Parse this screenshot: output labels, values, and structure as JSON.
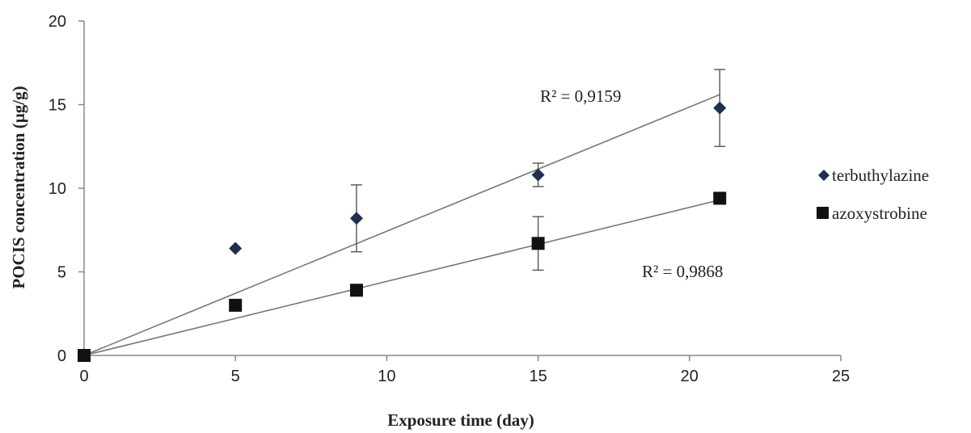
{
  "chart_data": {
    "type": "scatter",
    "xlabel": "Exposure time (day)",
    "ylabel": "POCIS concentration (µg/g)",
    "xlim": [
      0,
      25
    ],
    "ylim": [
      0,
      20
    ],
    "xticks": [
      0,
      5,
      10,
      15,
      20,
      25
    ],
    "yticks": [
      0,
      5,
      10,
      15,
      20
    ],
    "grid": false,
    "legend_position": "right",
    "series": [
      {
        "name": "terbuthylazine",
        "marker": "diamond",
        "color": "#1f2f4f",
        "x": [
          0,
          5,
          9,
          15,
          21
        ],
        "y": [
          0,
          6.4,
          8.2,
          10.8,
          14.8
        ],
        "error": [
          0,
          0,
          2.0,
          0.7,
          2.3
        ],
        "trendline": {
          "x": [
            0,
            21
          ],
          "y": [
            0,
            15.6
          ]
        }
      },
      {
        "name": "azoxystrobine",
        "marker": "square",
        "color": "#111111",
        "x": [
          0,
          5,
          9,
          15,
          21
        ],
        "y": [
          0,
          3.0,
          3.9,
          6.7,
          9.4
        ],
        "error": [
          0,
          0,
          0.3,
          1.6,
          0.3
        ],
        "trendline": {
          "x": [
            0,
            21
          ],
          "y": [
            0,
            9.3
          ]
        }
      }
    ],
    "annotations": [
      {
        "text": "R² = 0,9159",
        "series": "terbuthylazine"
      },
      {
        "text": "R² = 0,9868",
        "series": "azoxystrobine"
      }
    ]
  }
}
